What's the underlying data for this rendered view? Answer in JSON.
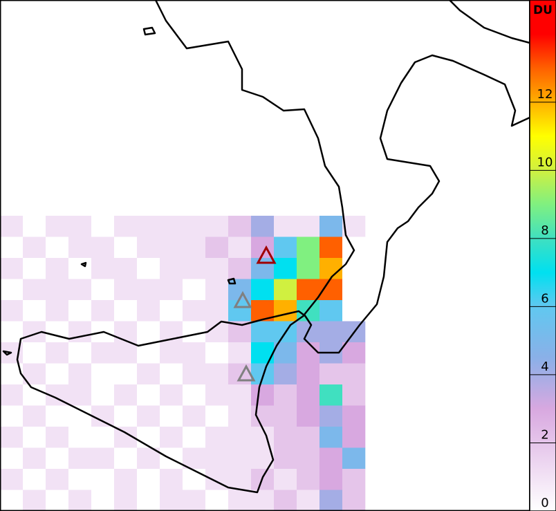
{
  "chart_data": {
    "type": "heatmap-map",
    "colorbar_label": "DU",
    "ylim": [
      0,
      15
    ],
    "yticks": [
      0,
      2,
      4,
      6,
      8,
      10,
      12
    ],
    "colorscale": [
      [
        0,
        "#ffffff"
      ],
      [
        3,
        "#d8a8e0"
      ],
      [
        4.5,
        "#8ab0e8"
      ],
      [
        6,
        "#60c8f0"
      ],
      [
        7,
        "#00e0f0"
      ],
      [
        8,
        "#40e0c0"
      ],
      [
        9,
        "#80f080"
      ],
      [
        10,
        "#d0f040"
      ],
      [
        11,
        "#ffff00"
      ],
      [
        12,
        "#ffb000"
      ],
      [
        13,
        "#ff6000"
      ],
      [
        14,
        "#ff0000"
      ]
    ],
    "grid": [
      [
        1,
        0,
        1,
        1,
        0,
        1,
        1,
        1,
        1,
        1,
        2,
        4,
        1,
        1,
        5,
        1
      ],
      [
        0,
        1,
        0,
        1,
        1,
        0,
        1,
        1,
        1,
        2,
        1,
        3,
        6,
        9,
        13,
        0
      ],
      [
        1,
        0,
        1,
        0,
        1,
        1,
        0,
        1,
        1,
        1,
        2,
        5,
        7,
        9,
        12,
        0
      ],
      [
        0,
        1,
        1,
        1,
        0,
        1,
        1,
        1,
        0,
        1,
        5,
        7,
        10,
        13,
        13,
        0
      ],
      [
        1,
        0,
        1,
        0,
        1,
        0,
        1,
        0,
        1,
        1,
        6,
        13,
        12,
        8,
        6,
        0
      ],
      [
        0,
        1,
        0,
        1,
        0,
        1,
        0,
        1,
        0,
        1,
        2,
        6,
        6,
        4,
        4,
        4
      ],
      [
        1,
        0,
        1,
        0,
        1,
        1,
        0,
        1,
        1,
        0,
        1,
        7,
        5,
        3,
        4,
        3
      ],
      [
        0,
        1,
        0,
        1,
        0,
        0,
        1,
        0,
        1,
        1,
        2,
        6,
        4,
        3,
        2,
        2
      ],
      [
        1,
        0,
        1,
        1,
        0,
        1,
        0,
        1,
        0,
        1,
        1,
        3,
        2,
        3,
        8,
        2
      ],
      [
        0,
        1,
        0,
        0,
        1,
        0,
        1,
        0,
        1,
        0,
        1,
        2,
        2,
        3,
        4,
        3
      ],
      [
        1,
        0,
        1,
        0,
        0,
        1,
        0,
        1,
        0,
        1,
        1,
        1,
        2,
        2,
        5,
        3
      ],
      [
        0,
        1,
        0,
        1,
        1,
        0,
        1,
        0,
        1,
        1,
        1,
        1,
        2,
        2,
        3,
        5
      ],
      [
        1,
        0,
        1,
        0,
        0,
        1,
        0,
        1,
        0,
        1,
        1,
        2,
        1,
        2,
        3,
        2
      ],
      [
        0,
        1,
        0,
        1,
        0,
        1,
        0,
        1,
        1,
        0,
        1,
        1,
        2,
        1,
        4,
        2
      ]
    ]
  }
}
